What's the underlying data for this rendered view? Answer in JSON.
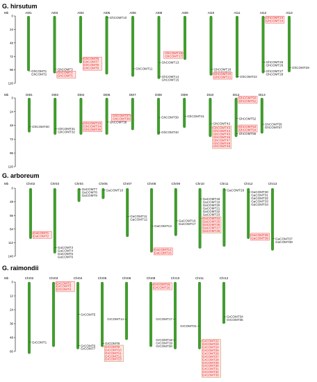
{
  "colors": {
    "chromosome": "#3f9e2a",
    "chromosome_dark": "#1f6f14",
    "gene_normal": "#1a1a1a",
    "gene_duplicated": "#e8262d",
    "box_stroke": "#e8262d",
    "box_fill": "#fde7e3",
    "tandem_box_stroke": "#b5651d"
  },
  "panels": [
    {
      "id": "hirsutum",
      "species": "G. hirsutum",
      "rows": [
        {
          "mb_label": "Mb",
          "ticks": [
            0,
            24,
            48,
            72,
            96,
            120
          ],
          "max_mb": 120,
          "chromosomes": [
            {
              "name": "At01",
              "length": 98
            },
            {
              "name": "At03",
              "length": 102
            },
            {
              "name": "At04",
              "length": 84
            },
            {
              "name": "At05",
              "length": 104
            },
            {
              "name": "At06",
              "length": 108
            },
            {
              "name": "At08",
              "length": 112
            },
            {
              "name": "At09",
              "length": 78
            },
            {
              "name": "At10",
              "length": 106
            },
            {
              "name": "At11",
              "length": 110
            },
            {
              "name": "At12",
              "length": 102
            },
            {
              "name": "At13",
              "length": 100
            }
          ],
          "genes": [
            {
              "chr": 0,
              "pos": 98,
              "side": "right",
              "labels": [
                "GhCOMT1",
                "GhCOMT2"
              ],
              "dup": false
            },
            {
              "chr": 1,
              "pos": 95,
              "side": "right",
              "labels": [
                "GhCOMT3"
              ],
              "dup": false
            },
            {
              "chr": 1,
              "pos": 101,
              "side": "right",
              "labels": [
                "GhCOMT4",
                "GhCOMT5"
              ],
              "dup": true
            },
            {
              "chr": 2,
              "pos": 76,
              "side": "right",
              "labels": [
                "GhCOMT6",
                "GhCOMT7",
                "GhCOMT8",
                "GhCOMT9"
              ],
              "dup": true
            },
            {
              "chr": 3,
              "pos": 3,
              "side": "right",
              "labels": [
                "GhCOMT10"
              ],
              "dup": false
            },
            {
              "chr": 4,
              "pos": 94,
              "side": "right",
              "labels": [
                "GhCOMT11"
              ],
              "dup": false
            },
            {
              "chr": 5,
              "pos": 83,
              "side": "right",
              "labels": [
                "GhCOMT13"
              ],
              "dup": false
            },
            {
              "chr": 5,
              "pos": 108,
              "side": "right",
              "labels": [
                "GhCOMT14",
                "GhCOMT15"
              ],
              "dup": false
            },
            {
              "chr": 6,
              "pos": 66,
              "side": "left",
              "labels": [
                "GhCOMT16",
                "GhCOMT17"
              ],
              "dup": true
            },
            {
              "chr": 7,
              "pos": 95,
              "side": "right",
              "labels": [
                "GhCOMT18",
                "GhCOMT19"
              ],
              "dup": false
            },
            {
              "chr": 7,
              "pos": 103,
              "side": "right",
              "labels": [
                "GhCOMT20",
                "GhCOMT21"
              ],
              "dup": true
            },
            {
              "chr": 8,
              "pos": 108,
              "side": "right",
              "labels": [
                "GhCOMT22"
              ],
              "dup": false
            },
            {
              "chr": 9,
              "pos": 3,
              "side": "right",
              "labels": [
                "GhCOMT23",
                "GhCOMT24"
              ],
              "dup": true
            },
            {
              "chr": 9,
              "pos": 82,
              "side": "right",
              "labels": [
                "GhCOMT25",
                "GhCOMT26"
              ],
              "dup": false
            },
            {
              "chr": 9,
              "pos": 98,
              "side": "right",
              "labels": [
                "GhCOMT27",
                "GhCOMT28"
              ],
              "dup": false
            },
            {
              "chr": 10,
              "pos": 92,
              "side": "right",
              "labels": [
                "GhCOMT29"
              ],
              "dup": false
            }
          ]
        },
        {
          "mb_label": "Mb",
          "ticks": [
            0,
            24,
            48,
            72,
            96,
            120
          ],
          "max_mb": 120,
          "chromosomes": [
            {
              "name": "Dt01",
              "length": 60
            },
            {
              "name": "Dt02",
              "length": 64
            },
            {
              "name": "Dt04",
              "length": 64
            },
            {
              "name": "Dt06",
              "length": 64
            },
            {
              "name": "Dt07",
              "length": 56
            },
            {
              "name": "Dt08",
              "length": 64
            },
            {
              "name": "Dt09",
              "length": 52
            },
            {
              "name": "Dt10",
              "length": 68
            },
            {
              "name": "Dt12",
              "length": 68
            },
            {
              "name": "Dt13",
              "length": 62
            }
          ],
          "genes": [
            {
              "chr": 0,
              "pos": 50,
              "side": "right",
              "labels": [
                "GhCOMT30"
              ],
              "dup": false
            },
            {
              "chr": 1,
              "pos": 54,
              "side": "right",
              "labels": [
                "GhCOMT31",
                "GhCOMT32"
              ],
              "dup": false
            },
            {
              "chr": 2,
              "pos": 44,
              "side": "right",
              "labels": [
                "GhCOMT33",
                "GhCOMT34",
                "GhCOMT35"
              ],
              "dup": true
            },
            {
              "chr": 3,
              "pos": 42,
              "side": "right",
              "labels": [
                "GhCOMT36"
              ],
              "dup": false
            },
            {
              "chr": 4,
              "pos": 31,
              "side": "left",
              "labels": [
                "GhCOMT37",
                "GhCOMT38"
              ],
              "dup": true
            },
            {
              "chr": 5,
              "pos": 34,
              "side": "right",
              "labels": [
                "GhCOMT39"
              ],
              "dup": false
            },
            {
              "chr": 5,
              "pos": 60,
              "side": "right",
              "labels": [
                "GhCOMT40"
              ],
              "dup": false
            },
            {
              "chr": 6,
              "pos": 32,
              "side": "right",
              "labels": [
                "GhCOMT41"
              ],
              "dup": false
            },
            {
              "chr": 7,
              "pos": 45,
              "side": "right",
              "labels": [
                "GhCOMT42"
              ],
              "dup": false
            },
            {
              "chr": 7,
              "pos": 52,
              "side": "right",
              "labels": [
                "GhCOMT43",
                "GhCOMT44",
                "GhCOMT45",
                "GhCOMT46",
                "GhCOMT47",
                "GhCOMT48",
                "GhCOMT49"
              ],
              "dup": true
            },
            {
              "chr": 8,
              "pos": 0,
              "side": "right",
              "labels": [
                "GhCOMT50",
                "GhCOMT51"
              ],
              "dup": true
            },
            {
              "chr": 8,
              "pos": 36,
              "side": "right",
              "labels": [
                "GhCOMT52"
              ],
              "dup": false
            },
            {
              "chr": 8,
              "pos": 50,
              "side": "right",
              "labels": [
                "GhCOMT53",
                "GhCOMT54"
              ],
              "dup": true
            },
            {
              "chr": 8,
              "pos": 62,
              "side": "right",
              "labels": [
                "GhCOMT55"
              ],
              "dup": false
            },
            {
              "chr": 9,
              "pos": 46,
              "side": "right",
              "labels": [
                "GhCOMT56",
                "GhCOMT57"
              ],
              "dup": false
            }
          ]
        }
      ]
    },
    {
      "id": "arboreum",
      "species": "G. arboreum",
      "rows": [
        {
          "mb_label": "Mb",
          "ticks": [
            0,
            28,
            56,
            84,
            112,
            140
          ],
          "max_mb": 140,
          "chromosomes": [
            {
              "name": "Chr02",
              "length": 104
            },
            {
              "name": "Chr03",
              "length": 134
            },
            {
              "name": "Chr04",
              "length": 28
            },
            {
              "name": "Chr05",
              "length": 22
            },
            {
              "name": "Chr07",
              "length": 100
            },
            {
              "name": "Chr08",
              "length": 132
            },
            {
              "name": "Chr09",
              "length": 98
            },
            {
              "name": "Chr10",
              "length": 124
            },
            {
              "name": "Chr11",
              "length": 120
            },
            {
              "name": "Chr12",
              "length": 104
            },
            {
              "name": "Chr13",
              "length": 128
            }
          ],
          "genes": [
            {
              "chr": 0,
              "pos": 92,
              "side": "right",
              "labels": [
                "GaCOMT1",
                "GaCOMT2"
              ],
              "dup": true
            },
            {
              "chr": 1,
              "pos": 122,
              "side": "right",
              "labels": [
                "GaCOMT3",
                "GaCOMT4",
                "GaCOMT5",
                "GaCOMT6"
              ],
              "dup": false
            },
            {
              "chr": 2,
              "pos": 2,
              "side": "right",
              "labels": [
                "GaCOMT7",
                "GaCOMT8",
                "GaCOMT9"
              ],
              "dup": false
            },
            {
              "chr": 3,
              "pos": 4,
              "side": "right",
              "labels": [
                "GaCOMT10"
              ],
              "dup": false
            },
            {
              "chr": 4,
              "pos": 58,
              "side": "right",
              "labels": [
                "GaCOMT11",
                "GaCOMT12"
              ],
              "dup": false
            },
            {
              "chr": 5,
              "pos": 78,
              "side": "right",
              "labels": [
                "GaCOMT13"
              ],
              "dup": false
            },
            {
              "chr": 5,
              "pos": 126,
              "side": "right",
              "labels": [
                "GaCOMT14",
                "GaCOMT15"
              ],
              "dup": true
            },
            {
              "chr": 6,
              "pos": 67,
              "side": "right",
              "labels": [
                "GaCOMT16",
                "GaCOMT17"
              ],
              "dup": false
            },
            {
              "chr": 7,
              "pos": 22,
              "side": "right",
              "labels": [
                "GaCOMT18",
                "GaCOMT19",
                "GaCOMT20",
                "GaCOMT21",
                "GaCOMT22",
                "GaCOMT23"
              ],
              "dup": false
            },
            {
              "chr": 7,
              "pos": 62,
              "side": "right",
              "labels": [
                "GaCOMT24",
                "GaCOMT25",
                "GaCOMT26",
                "GaCOMT27",
                "GaCOMT28"
              ],
              "dup": true
            },
            {
              "chr": 8,
              "pos": 4,
              "side": "right",
              "labels": [
                "GaCOMT29"
              ],
              "dup": false
            },
            {
              "chr": 9,
              "pos": 8,
              "side": "right",
              "labels": [
                "GaCOMT30",
                "GaCOMT31",
                "GaCOMT32",
                "GaCOMT33",
                "GaCOMT34"
              ],
              "dup": false
            },
            {
              "chr": 9,
              "pos": 96,
              "side": "right",
              "labels": [
                "GaCOMT35",
                "GaCOMT36"
              ],
              "dup": true
            },
            {
              "chr": 10,
              "pos": 104,
              "side": "right",
              "labels": [
                "GaCOMT37",
                "GaCOMT38"
              ],
              "dup": false
            }
          ]
        }
      ]
    },
    {
      "id": "raimondii",
      "species": "G. raimondii",
      "rows": [
        {
          "mb_label": "Mb",
          "ticks": [
            0,
            12,
            24,
            36,
            48,
            60
          ],
          "max_mb": 60,
          "chromosomes": [
            {
              "name": "Chr02",
              "length": 62
            },
            {
              "name": "Chr03",
              "length": 56
            },
            {
              "name": "Chr04",
              "length": 58
            },
            {
              "name": "Chr05",
              "length": 56
            },
            {
              "name": "Chr06",
              "length": 50
            },
            {
              "name": "Chr08",
              "length": 56
            },
            {
              "name": "Chr10",
              "length": 58
            },
            {
              "name": "Chr11",
              "length": 58
            },
            {
              "name": "Chr12",
              "length": 36
            }
          ],
          "genes": [
            {
              "chr": 0,
              "pos": 52,
              "side": "right",
              "labels": [
                "GrCOMT1"
              ],
              "dup": false
            },
            {
              "chr": 1,
              "pos": 1,
              "side": "right",
              "labels": [
                "GrCOMT2",
                "GrCOMT3",
                "GrCOMT4"
              ],
              "dup": true
            },
            {
              "chr": 2,
              "pos": 28,
              "side": "right",
              "labels": [
                "GrCOMT5"
              ],
              "dup": false
            },
            {
              "chr": 2,
              "pos": 55,
              "side": "right",
              "labels": [
                "GrCOMT6",
                "GrCOMT7"
              ],
              "dup": false
            },
            {
              "chr": 3,
              "pos": 53,
              "side": "right",
              "labels": [
                "GrCOMT8"
              ],
              "dup": false
            },
            {
              "chr": 3,
              "pos": 56,
              "side": "right",
              "labels": [
                "GrCOMT9",
                "GrCOMT10",
                "GrCOMT11",
                "GrCOMT12",
                "GrCOMT13"
              ],
              "dup": true
            },
            {
              "chr": 4,
              "pos": 32,
              "side": "left",
              "labels": [
                "GrCOMT14"
              ],
              "dup": false
            },
            {
              "chr": 5,
              "pos": 2,
              "side": "right",
              "labels": [
                "GrCOMT15",
                "GrCOMT16"
              ],
              "dup": true
            },
            {
              "chr": 6,
              "pos": 32,
              "side": "left",
              "labels": [
                "GrCOMT17"
              ],
              "dup": false
            },
            {
              "chr": 6,
              "pos": 50,
              "side": "left",
              "labels": [
                "GrCOMT18",
                "GrCOMT19",
                "GrCOMT20"
              ],
              "dup": false
            },
            {
              "chr": 7,
              "pos": 38,
              "side": "left",
              "labels": [
                "GrCOMT21"
              ],
              "dup": false
            },
            {
              "chr": 7,
              "pos": 51,
              "side": "right",
              "labels": [
                "GrCOMT22",
                "GrCOMT23",
                "GrCOMT24",
                "GrCOMT25",
                "GrCOMT26",
                "GrCOMT27",
                "GrCOMT28",
                "GrCOMT29",
                "GrCOMT30",
                "GrCOMT31",
                "GrCOMT32",
                "GrCOMT33"
              ],
              "dup": true
            },
            {
              "chr": 8,
              "pos": 30,
              "side": "right",
              "labels": [
                "GrCOMT34",
                "GrCOMT35"
              ],
              "dup": false
            }
          ]
        }
      ]
    }
  ]
}
